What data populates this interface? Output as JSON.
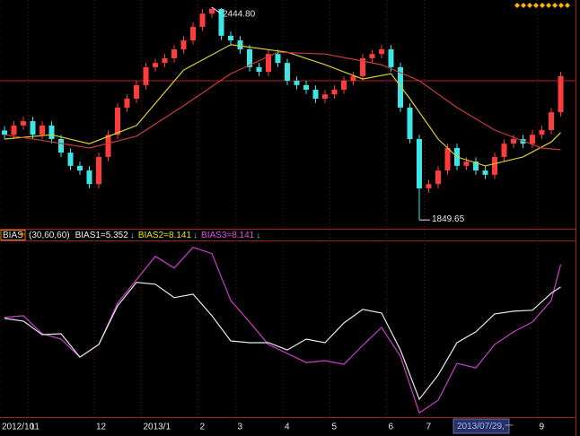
{
  "chart_data": [
    {
      "type": "candlestick",
      "categories": [
        "2012/10",
        null,
        null,
        "11",
        null,
        null,
        null,
        null,
        null,
        null,
        "12",
        null,
        null,
        null,
        null,
        "2013/1",
        null,
        null,
        null,
        null,
        null,
        "2",
        null,
        null,
        null,
        "3",
        null,
        null,
        null,
        null,
        "4",
        null,
        null,
        null,
        null,
        "5",
        null,
        null,
        null,
        null,
        null,
        "6",
        null,
        null,
        null,
        "7",
        null,
        null,
        null,
        null,
        null,
        null,
        null,
        null,
        null,
        null,
        null,
        "9",
        null,
        null
      ],
      "open": [
        2100,
        2088,
        2114,
        2126,
        2088,
        2114,
        2076,
        2038,
        2001,
        1988,
        1950,
        2026,
        2088,
        2164,
        2189,
        2227,
        2277,
        2289,
        2302,
        2327,
        2352,
        2390,
        2427,
        2440,
        2365,
        2352,
        2327,
        2277,
        2264,
        2314,
        2289,
        2239,
        2227,
        2214,
        2189,
        2201,
        2214,
        2239,
        2252,
        2302,
        2314,
        2327,
        2277,
        2164,
        2076,
        1938,
        1950,
        1988,
        2051,
        2001,
        2013,
        1988,
        1976,
        2026,
        2063,
        2076,
        2063,
        2088,
        2101,
        2151
      ],
      "high": [
        2112,
        2126,
        2138,
        2138,
        2126,
        2126,
        2088,
        2050,
        2013,
        2000,
        2038,
        2100,
        2176,
        2201,
        2239,
        2289,
        2301,
        2314,
        2339,
        2364,
        2402,
        2439,
        2444.8,
        2442,
        2377,
        2364,
        2339,
        2289,
        2326,
        2326,
        2301,
        2251,
        2239,
        2226,
        2213,
        2226,
        2251,
        2264,
        2314,
        2326,
        2339,
        2339,
        2289,
        2176,
        2088,
        1962,
        2000,
        2063,
        2063,
        2025,
        2025,
        2000,
        2038,
        2075,
        2088,
        2088,
        2100,
        2113,
        2163,
        2264
      ],
      "low": [
        2076,
        2076,
        2102,
        2076,
        2076,
        2064,
        2026,
        1989,
        1976,
        1938,
        1938,
        2014,
        2076,
        2152,
        2177,
        2215,
        2265,
        2277,
        2290,
        2315,
        2340,
        2378,
        2415,
        2353,
        2340,
        2315,
        2265,
        2252,
        2252,
        2277,
        2227,
        2215,
        2202,
        2177,
        2177,
        2189,
        2202,
        2227,
        2240,
        2290,
        2302,
        2265,
        2152,
        2064,
        1849.65,
        1926,
        1938,
        1976,
        1989,
        1989,
        1976,
        1964,
        1964,
        2014,
        2051,
        2051,
        2051,
        2076,
        2089,
        2139
      ],
      "close": [
        2088,
        2114,
        2126,
        2088,
        2114,
        2076,
        2038,
        2001,
        1988,
        1950,
        2026,
        2088,
        2164,
        2189,
        2227,
        2277,
        2289,
        2302,
        2327,
        2352,
        2390,
        2427,
        2440,
        2365,
        2352,
        2327,
        2277,
        2264,
        2314,
        2289,
        2239,
        2227,
        2214,
        2189,
        2201,
        2214,
        2239,
        2252,
        2302,
        2314,
        2327,
        2277,
        2164,
        2076,
        1938,
        1950,
        1988,
        2051,
        2001,
        2013,
        1988,
        1976,
        2026,
        2063,
        2076,
        2063,
        2088,
        2101,
        2151,
        2252
      ],
      "high_labels": [
        null,
        null,
        null,
        null,
        null,
        null,
        null,
        null,
        null,
        null,
        null,
        null,
        null,
        null,
        null,
        null,
        null,
        null,
        null,
        null,
        null,
        null,
        "2444.80",
        null,
        null,
        null,
        null,
        null,
        null,
        null,
        null,
        null,
        null,
        null,
        null,
        null,
        null,
        null,
        null,
        null,
        null,
        null,
        null,
        null,
        null,
        null,
        null,
        null,
        null,
        null,
        null,
        null,
        null,
        null,
        null,
        null,
        null,
        null,
        null,
        null
      ],
      "low_labels": [
        null,
        null,
        null,
        null,
        null,
        null,
        null,
        null,
        null,
        null,
        null,
        null,
        null,
        null,
        null,
        null,
        null,
        null,
        null,
        null,
        null,
        null,
        null,
        null,
        null,
        null,
        null,
        null,
        null,
        null,
        null,
        null,
        null,
        null,
        null,
        null,
        null,
        null,
        null,
        null,
        null,
        null,
        null,
        null,
        "1849.65",
        null,
        null,
        null,
        null,
        null,
        null,
        null,
        null,
        null,
        null,
        null,
        null,
        null,
        null,
        null
      ],
      "up_color": "#ff3c3c",
      "down_color": "#3ce6e6",
      "ylim": [
        1825,
        2465
      ],
      "crosshair": 2239,
      "cursor_label": "2013/07/29,一",
      "series": [
        {
          "color": "#d8d030",
          "x": [
            0,
            5,
            9,
            14,
            19,
            24,
            30,
            34,
            38,
            41,
            43,
            46,
            48,
            51,
            55,
            58,
            59
          ],
          "values": [
            2076,
            2088,
            2063,
            2114,
            2269,
            2340,
            2319,
            2284,
            2244,
            2259,
            2189,
            2076,
            2026,
            2001,
            2026,
            2068,
            2094
          ]
        },
        {
          "color": "#c83c3c",
          "x": [
            0,
            5,
            9,
            14,
            19,
            24,
            29,
            34,
            40,
            44,
            48,
            52,
            57,
            59
          ],
          "values": [
            2088,
            2068,
            2051,
            2084,
            2169,
            2259,
            2319,
            2314,
            2284,
            2239,
            2164,
            2101,
            2051,
            2046
          ]
        }
      ]
    },
    {
      "type": "line",
      "indicator": "BIAS",
      "params": "(30,60,60)",
      "legend": [
        {
          "label": "BIAS1=5.352",
          "color": "#f0f0f0",
          "arrow": "↓"
        },
        {
          "label": "BIAS2=8.141",
          "color": "#e6e600",
          "arrow": "↓"
        },
        {
          "label": "BIAS3=8.141",
          "color": "#e050e0",
          "arrow": "↓"
        }
      ],
      "ylim": [
        -10.8,
        10.9
      ],
      "series": [
        {
          "color": "#c840c8",
          "x": [
            0,
            2,
            4,
            6,
            8,
            10,
            12,
            14,
            16,
            18,
            20,
            22,
            24,
            26,
            28,
            30,
            32,
            34,
            36,
            38,
            40,
            42,
            44,
            46,
            48,
            50,
            52,
            54,
            56,
            58,
            59
          ],
          "values": [
            1.56,
            1.79,
            -0.45,
            -1.12,
            -3.35,
            -1.79,
            3.35,
            6.25,
            9.15,
            7.7,
            10.27,
            9.49,
            3.68,
            1.0,
            -1.79,
            -2.9,
            -4.02,
            -3.79,
            -4.24,
            -1.9,
            0.33,
            -3.24,
            -10.27,
            -8.7,
            -4.13,
            -4.69,
            -1.79,
            -0.22,
            1.0,
            3.68,
            8.141
          ]
        },
        {
          "color": "#e8e8e8",
          "x": [
            0,
            2,
            4,
            6,
            8,
            10,
            12,
            14,
            16,
            18,
            20,
            22,
            24,
            26,
            28,
            30,
            32,
            34,
            36,
            38,
            40,
            42,
            44,
            46,
            48,
            50,
            52,
            54,
            56,
            58,
            59
          ],
          "values": [
            1.45,
            1.12,
            -0.56,
            -0.45,
            -3.35,
            -1.79,
            3.01,
            5.91,
            5.69,
            4.02,
            4.46,
            1.79,
            -1.34,
            -1.56,
            -1.56,
            -2.46,
            -1.12,
            -1.56,
            0.89,
            2.57,
            2.12,
            -2.46,
            -8.59,
            -5.58,
            -1.56,
            -0.22,
            2.01,
            2.34,
            2.46,
            4.58,
            5.352
          ]
        }
      ]
    }
  ]
}
